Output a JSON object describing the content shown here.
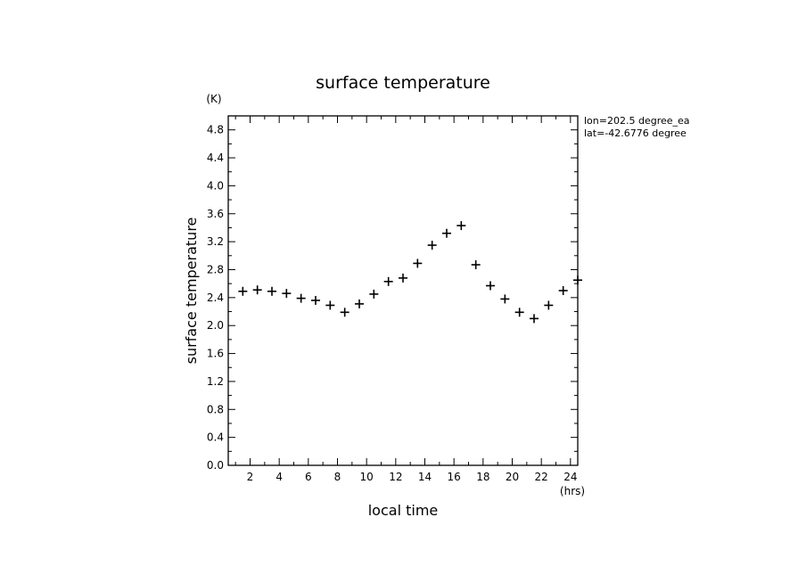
{
  "chart_data": {
    "type": "scatter",
    "title": "surface temperature",
    "xlabel": "local time",
    "ylabel": "surface temperature",
    "x_unit": "(hrs)",
    "y_unit": "(K)",
    "xlim": [
      0.5,
      24.5
    ],
    "ylim": [
      0.0,
      5.0
    ],
    "x_ticks": [
      2,
      4,
      6,
      8,
      10,
      12,
      14,
      16,
      18,
      20,
      22,
      24
    ],
    "y_ticks": [
      0.0,
      0.4,
      0.8,
      1.2,
      1.6,
      2.0,
      2.4,
      2.8,
      3.2,
      3.6,
      4.0,
      4.4,
      4.8
    ],
    "y_tick_labels": [
      "0.0",
      "0.4",
      "0.8",
      "1.2",
      "1.6",
      "2.0",
      "2.4",
      "2.8",
      "3.2",
      "3.6",
      "4.0",
      "4.4",
      "4.8"
    ],
    "marker": "+",
    "annotation_lines": [
      "lon=202.5 degree_ea",
      "lat=-42.6776 degree"
    ],
    "x": [
      1.5,
      2.5,
      3.5,
      4.5,
      5.5,
      6.5,
      7.5,
      8.5,
      9.5,
      10.5,
      11.5,
      12.5,
      13.5,
      14.5,
      15.5,
      16.5,
      17.5,
      18.5,
      19.5,
      20.5,
      21.5,
      22.5,
      23.5,
      24.5
    ],
    "y": [
      2.49,
      2.51,
      2.49,
      2.46,
      2.39,
      2.36,
      2.29,
      2.19,
      2.31,
      2.45,
      2.63,
      2.68,
      2.89,
      3.15,
      3.32,
      3.43,
      2.87,
      2.57,
      2.38,
      2.19,
      2.1,
      2.29,
      2.5,
      2.65
    ]
  }
}
